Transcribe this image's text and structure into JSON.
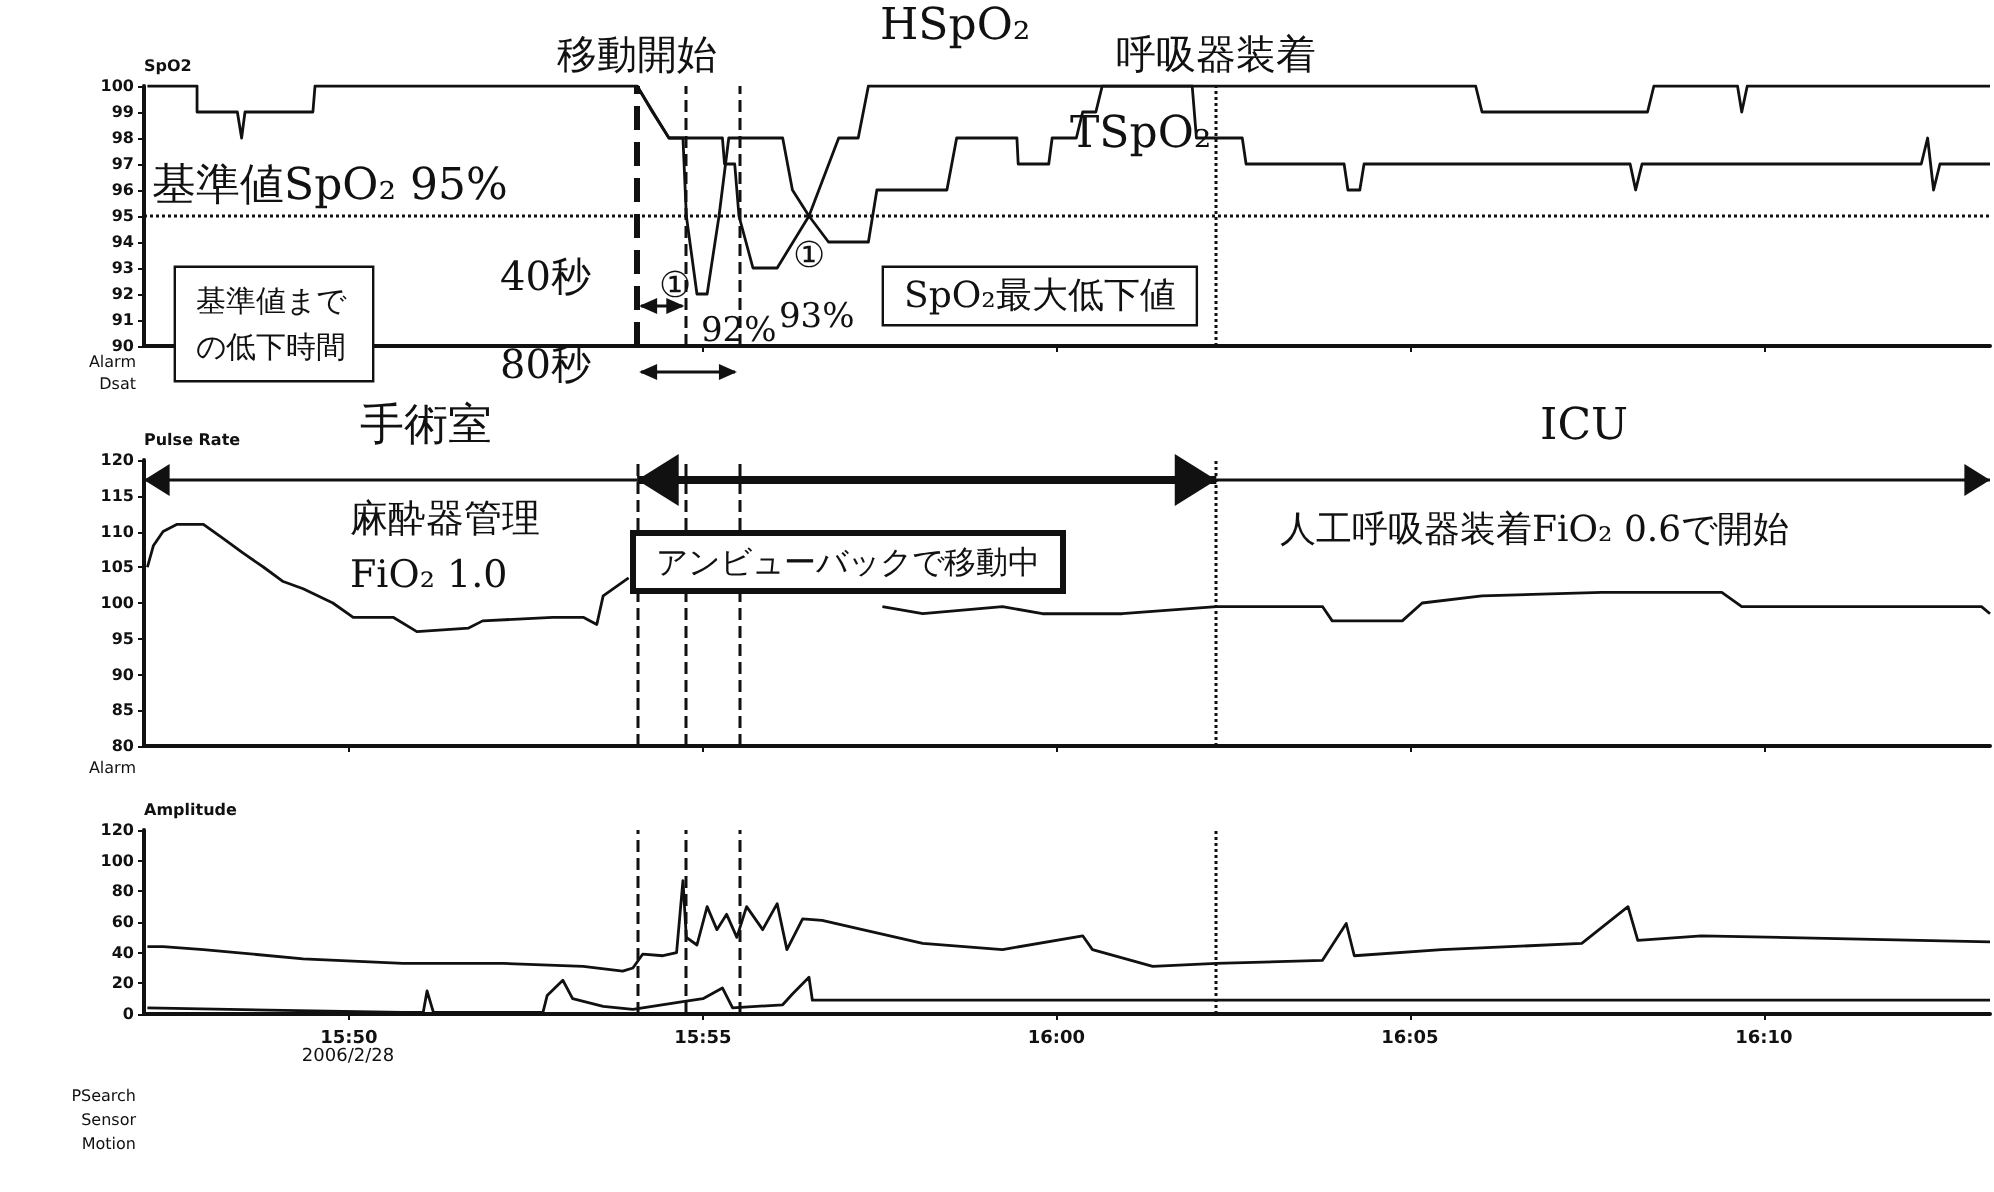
{
  "chart_data": [
    {
      "type": "line",
      "ylabel": "SpO2",
      "xlim": [
        15.785,
        16.22
      ],
      "ylim": [
        90,
        100
      ],
      "yticks": [
        90,
        91,
        92,
        93,
        94,
        95,
        96,
        97,
        98,
        99,
        100
      ],
      "tick_labels": "y",
      "xticks": [
        {
          "value": 15.8333,
          "label": null
        },
        {
          "value": 15.9167,
          "label": null
        },
        {
          "value": 16,
          "label": null
        },
        {
          "value": 16.0833,
          "label": null
        },
        {
          "value": 16.1667,
          "label": null
        }
      ],
      "series": [
        {
          "name": "HSpO₂",
          "color": "#111111",
          "x": [
            15.7858,
            15.7975,
            15.7975,
            15.807,
            15.808,
            15.8088,
            15.8248,
            15.8253,
            15.9012,
            15.9048,
            15.9087,
            15.9213,
            15.9218,
            15.9242,
            15.9252,
            15.9285,
            15.9342,
            15.9417,
            15.9487,
            15.9533,
            15.9557,
            16.0988,
            16.1003,
            16.1393,
            16.1408,
            16.1605,
            16.1615,
            16.1628,
            16.22
          ],
          "values": [
            100,
            100,
            99,
            99,
            98,
            99,
            99,
            100,
            100,
            99,
            98,
            98,
            97,
            97,
            95,
            93,
            93,
            95,
            98,
            98,
            100,
            100,
            99,
            99,
            100,
            100,
            99,
            100,
            100
          ]
        },
        {
          "name": "TSpO₂",
          "color": "#111111",
          "x": [
            15.9012,
            15.9087,
            15.912,
            15.9128,
            15.9153,
            15.9177,
            15.9205,
            15.9228,
            15.9355,
            15.9378,
            15.9417,
            15.9463,
            15.9557,
            15.9577,
            15.9742,
            15.9765,
            15.9907,
            15.991,
            15.9982,
            15.999,
            16.0047,
            16.0062,
            16.0093,
            16.0108,
            16.032,
            16.033,
            16.0438,
            16.0447,
            16.0678,
            16.0687,
            16.0715,
            16.0725,
            16.1352,
            16.1365,
            16.138,
            16.2038,
            16.2053,
            16.2067,
            16.2082,
            16.22
          ],
          "values": [
            100,
            98,
            98,
            95,
            92,
            92,
            95,
            98,
            98,
            96,
            95,
            94,
            94,
            96,
            96,
            98,
            98,
            97,
            97,
            98,
            98,
            99,
            99,
            100,
            100,
            98,
            98,
            97,
            97,
            96,
            96,
            97,
            97,
            96,
            97,
            97,
            98,
            96,
            97,
            97
          ]
        }
      ],
      "ref_lines": [
        {
          "axis": "x",
          "value": 15.9012,
          "label": "移動開始",
          "line_style": "dashed"
        },
        {
          "axis": "x",
          "value": 15.9128,
          "line_style": "dashed"
        },
        {
          "axis": "x",
          "value": 15.9252,
          "line_style": "dashed"
        },
        {
          "axis": "x",
          "value": 16.0377,
          "label": "呼吸器装着",
          "line_style": "dotted"
        },
        {
          "axis": "y",
          "value": 95,
          "label": "基準値SpO₂ 95%",
          "line_style": "dotted"
        }
      ],
      "annotations": [
        "基準値までの低下時間",
        "40秒",
        "80秒",
        {
          "text": "92%",
          "x": 15.9153,
          "y": 92
        },
        {
          "text": "93%",
          "x": 15.9285,
          "y": 93
        },
        {
          "text": "①",
          "x": 15.9153,
          "y": 92
        },
        {
          "text": "①",
          "x": 15.9342,
          "y": 93
        },
        "SpO₂最大低下値",
        "Alarm",
        "Dsat"
      ]
    },
    {
      "type": "line",
      "ylabel": "Pulse Rate",
      "xlim": [
        15.785,
        16.22
      ],
      "ylim": [
        80,
        120
      ],
      "yticks": [
        80,
        85,
        90,
        95,
        100,
        105,
        110,
        115,
        120
      ],
      "tick_labels": "y",
      "xticks": [
        {
          "value": 15.8333,
          "label": null
        },
        {
          "value": 15.9167,
          "label": null
        },
        {
          "value": 16,
          "label": null
        },
        {
          "value": 16.0833,
          "label": null
        },
        {
          "value": 16.1667,
          "label": null
        }
      ],
      "series": [
        {
          "color": "#111111",
          "x": [
            15.7858,
            15.7872,
            15.7895,
            15.7928,
            15.799,
            15.8037,
            15.8083,
            15.8132,
            15.8178,
            15.8225,
            15.8295,
            15.8343,
            15.8437,
            15.8493,
            15.8615,
            15.8648,
            15.8813,
            15.8885,
            15.8917,
            15.8932,
            15.8992,
            15.9,
            15.959,
            15.9685,
            15.9873,
            15.9967,
            16.0155,
            16.0377,
            16.0627,
            16.065,
            16.0815,
            16.0862,
            16.1003,
            16.1285,
            16.1568,
            16.1615,
            16.218,
            16.22
          ],
          "values": [
            105,
            108,
            110,
            111,
            111,
            109,
            107,
            105,
            103,
            102,
            100,
            98,
            98,
            96,
            96.5,
            97.5,
            98,
            98,
            97,
            101,
            103.5,
            null,
            99.5,
            98.5,
            99.5,
            98.5,
            98.5,
            99.5,
            99.5,
            97.5,
            97.5,
            100,
            101,
            101.5,
            101.5,
            99.5,
            99.5,
            98.5
          ]
        }
      ],
      "ref_lines": [
        {
          "axis": "x",
          "value": 15.9012,
          "line_style": "dashed"
        },
        {
          "axis": "x",
          "value": 15.9128,
          "line_style": "dashed"
        },
        {
          "axis": "x",
          "value": 15.9252,
          "line_style": "dashed"
        },
        {
          "axis": "x",
          "value": 16.0377,
          "line_style": "dotted"
        }
      ],
      "annotations": [
        "手術室",
        "ICU",
        "麻酔器管理",
        "FiO₂ 1.0",
        "アンビューバックで移動中",
        "人工呼吸器装着FiO₂ 0.6で開始",
        "Alarm"
      ]
    },
    {
      "type": "line",
      "ylabel": "Amplitude",
      "xlim": [
        15.785,
        16.22
      ],
      "ylim": [
        0,
        120
      ],
      "yticks": [
        0,
        20,
        40,
        60,
        80,
        100,
        120
      ],
      "xticks": [
        {
          "value": 15.8333,
          "label": "15:50"
        },
        {
          "value": 15.9167,
          "label": "15:55"
        },
        {
          "value": 16,
          "label": "16:00"
        },
        {
          "value": 16.0833,
          "label": "16:05"
        },
        {
          "value": 16.1667,
          "label": "16:10"
        }
      ],
      "series": [
        {
          "color": "#111111",
          "x": [
            15.7858,
            15.7895,
            15.799,
            15.8225,
            15.846,
            15.8697,
            15.8885,
            15.8978,
            15.9002,
            15.9025,
            15.9073,
            15.9105,
            15.912,
            15.9128,
            15.9153,
            15.9177,
            15.92,
            15.9223,
            15.9247,
            15.927,
            15.9308,
            15.9342,
            15.9365,
            15.9402,
            15.9448,
            15.9543,
            15.9685,
            15.9873,
            16.0062,
            16.0085,
            16.0227,
            16.0377,
            16.0627,
            16.0683,
            16.0702,
            16.0908,
            16.1238,
            16.1347,
            16.137,
            16.152,
            16.22
          ],
          "values": [
            44,
            44,
            42,
            36,
            33,
            33,
            31,
            28,
            30,
            39,
            38,
            40,
            87,
            50,
            45,
            70,
            55,
            65,
            50,
            70,
            55,
            72,
            42,
            62,
            61,
            55,
            46,
            42,
            51,
            42,
            31,
            33,
            35,
            59,
            38,
            42,
            46,
            70,
            48,
            51,
            47
          ]
        },
        {
          "color": "#111111",
          "x": [
            15.7858,
            15.846,
            15.8508,
            15.8517,
            15.8532,
            15.879,
            15.88,
            15.8837,
            15.886,
            15.8932,
            15.9002,
            15.912,
            15.9167,
            15.9213,
            15.9237,
            15.9355,
            15.9378,
            15.9417,
            15.9425,
            15.9873,
            16.22
          ],
          "values": [
            4,
            1,
            1,
            15,
            1,
            1,
            12,
            22,
            10,
            5,
            3,
            8,
            10,
            17,
            4,
            6,
            13,
            24,
            9,
            9,
            9
          ]
        }
      ],
      "ref_lines": [
        {
          "axis": "x",
          "value": 15.9012,
          "line_style": "dashed"
        },
        {
          "axis": "x",
          "value": 15.9128,
          "line_style": "dashed"
        },
        {
          "axis": "x",
          "value": 15.9252,
          "line_style": "dashed"
        },
        {
          "axis": "x",
          "value": 16.0377,
          "line_style": "dotted"
        }
      ],
      "annotations": [
        "PSearch",
        "Sensor",
        "Motion",
        "2006/2/28"
      ]
    }
  ]
}
